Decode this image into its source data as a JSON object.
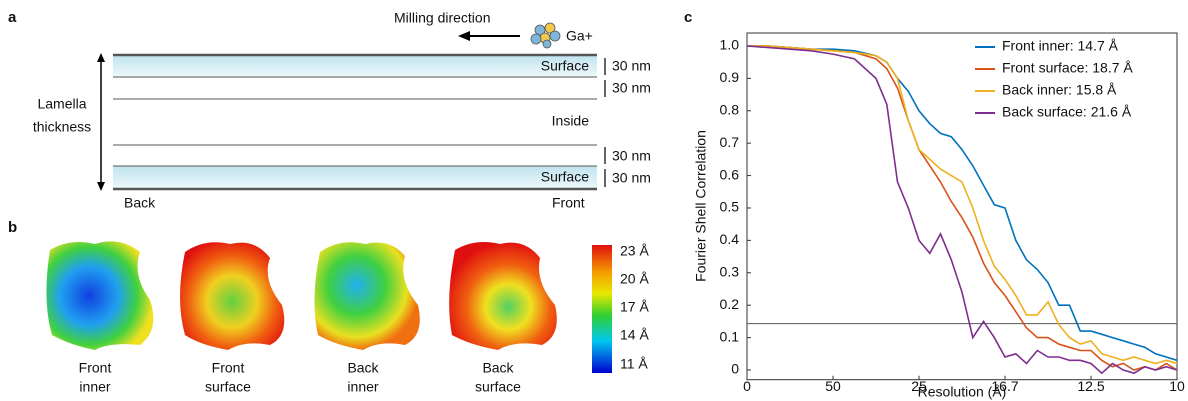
{
  "panel_a": {
    "label": "a",
    "milling_direction": "Milling direction",
    "ion": "Ga+",
    "thickness_label": [
      "Lamella",
      "thickness"
    ],
    "layers": [
      "Surface",
      "Inside",
      "Surface"
    ],
    "depths": [
      "30 nm",
      "30 nm",
      "30 nm",
      "30 nm"
    ],
    "sides": [
      "Back",
      "Front"
    ]
  },
  "panel_b": {
    "label": "b",
    "maps": [
      [
        "Front",
        "inner"
      ],
      [
        "Front",
        "surface"
      ],
      [
        "Back",
        "inner"
      ],
      [
        "Back",
        "surface"
      ]
    ],
    "colorbar": [
      "23 Å",
      "20 Å",
      "17 Å",
      "14 Å",
      "11 Å"
    ]
  },
  "chart_data": {
    "type": "line",
    "panel_label": "c",
    "x_label": "Resolution (Å)",
    "y_label": "Fourier Shell Correlation",
    "x": [
      0,
      0.005,
      0.01,
      0.015,
      0.02,
      0.025,
      0.03,
      0.0325,
      0.035,
      0.0375,
      0.04,
      0.0425,
      0.045,
      0.0475,
      0.05,
      0.0525,
      0.055,
      0.0575,
      0.06,
      0.0625,
      0.065,
      0.0675,
      0.07,
      0.0725,
      0.075,
      0.0775,
      0.08,
      0.0825,
      0.085,
      0.0875,
      0.09,
      0.0925,
      0.095,
      0.0975,
      0.1
    ],
    "series": [
      {
        "name": "Front inner: 14.7 Å",
        "color": "#0072bd",
        "values": [
          1.0,
          1.0,
          0.995,
          0.99,
          0.99,
          0.985,
          0.97,
          0.95,
          0.9,
          0.86,
          0.8,
          0.76,
          0.73,
          0.72,
          0.68,
          0.63,
          0.57,
          0.51,
          0.5,
          0.4,
          0.34,
          0.31,
          0.27,
          0.2,
          0.2,
          0.12,
          0.12,
          0.11,
          0.1,
          0.09,
          0.08,
          0.07,
          0.05,
          0.04,
          0.03
        ]
      },
      {
        "name": "Front surface: 18.7 Å",
        "color": "#d95319",
        "values": [
          1.0,
          1.0,
          0.995,
          0.99,
          0.985,
          0.98,
          0.96,
          0.93,
          0.87,
          0.77,
          0.68,
          0.63,
          0.58,
          0.52,
          0.47,
          0.41,
          0.33,
          0.27,
          0.23,
          0.18,
          0.13,
          0.1,
          0.1,
          0.08,
          0.07,
          0.06,
          0.06,
          0.03,
          0.01,
          0.02,
          0.0,
          0.01,
          0.0,
          0.02,
          0.0
        ]
      },
      {
        "name": "Back inner: 15.8 Å",
        "color": "#edb120",
        "values": [
          1.0,
          1.0,
          0.995,
          0.99,
          0.985,
          0.98,
          0.97,
          0.95,
          0.9,
          0.77,
          0.68,
          0.65,
          0.62,
          0.6,
          0.58,
          0.5,
          0.4,
          0.32,
          0.28,
          0.23,
          0.17,
          0.17,
          0.21,
          0.14,
          0.1,
          0.08,
          0.09,
          0.05,
          0.04,
          0.03,
          0.04,
          0.03,
          0.02,
          0.03,
          0.02
        ]
      },
      {
        "name": "Back surface: 21.6 Å",
        "color": "#7e2f8e",
        "values": [
          1.0,
          0.995,
          0.99,
          0.985,
          0.975,
          0.96,
          0.9,
          0.82,
          0.58,
          0.5,
          0.4,
          0.36,
          0.42,
          0.34,
          0.24,
          0.1,
          0.15,
          0.1,
          0.04,
          0.05,
          0.02,
          0.06,
          0.04,
          0.04,
          0.03,
          0.03,
          0.02,
          -0.01,
          0.02,
          0.0,
          -0.01,
          0.01,
          0.0,
          0.01,
          0.0
        ]
      }
    ],
    "threshold": 0.143,
    "xlim": [
      0,
      0.1
    ],
    "xticks": [
      0,
      {
        "value": 0.02,
        "label": "50"
      },
      {
        "value": 0.04,
        "label": "25"
      },
      {
        "value": 0.06,
        "label": "16.7"
      },
      {
        "value": 0.08,
        "label": "12.5"
      },
      {
        "value": 0.1,
        "label": "10"
      }
    ],
    "ylim": [
      -0.03,
      1.04
    ],
    "yticks": [
      0,
      0.1,
      0.2,
      0.3,
      0.4,
      0.5,
      0.6,
      0.7,
      0.8,
      0.9,
      {
        "value": 1,
        "label": "1.0"
      }
    ],
    "legend": "top-right"
  }
}
